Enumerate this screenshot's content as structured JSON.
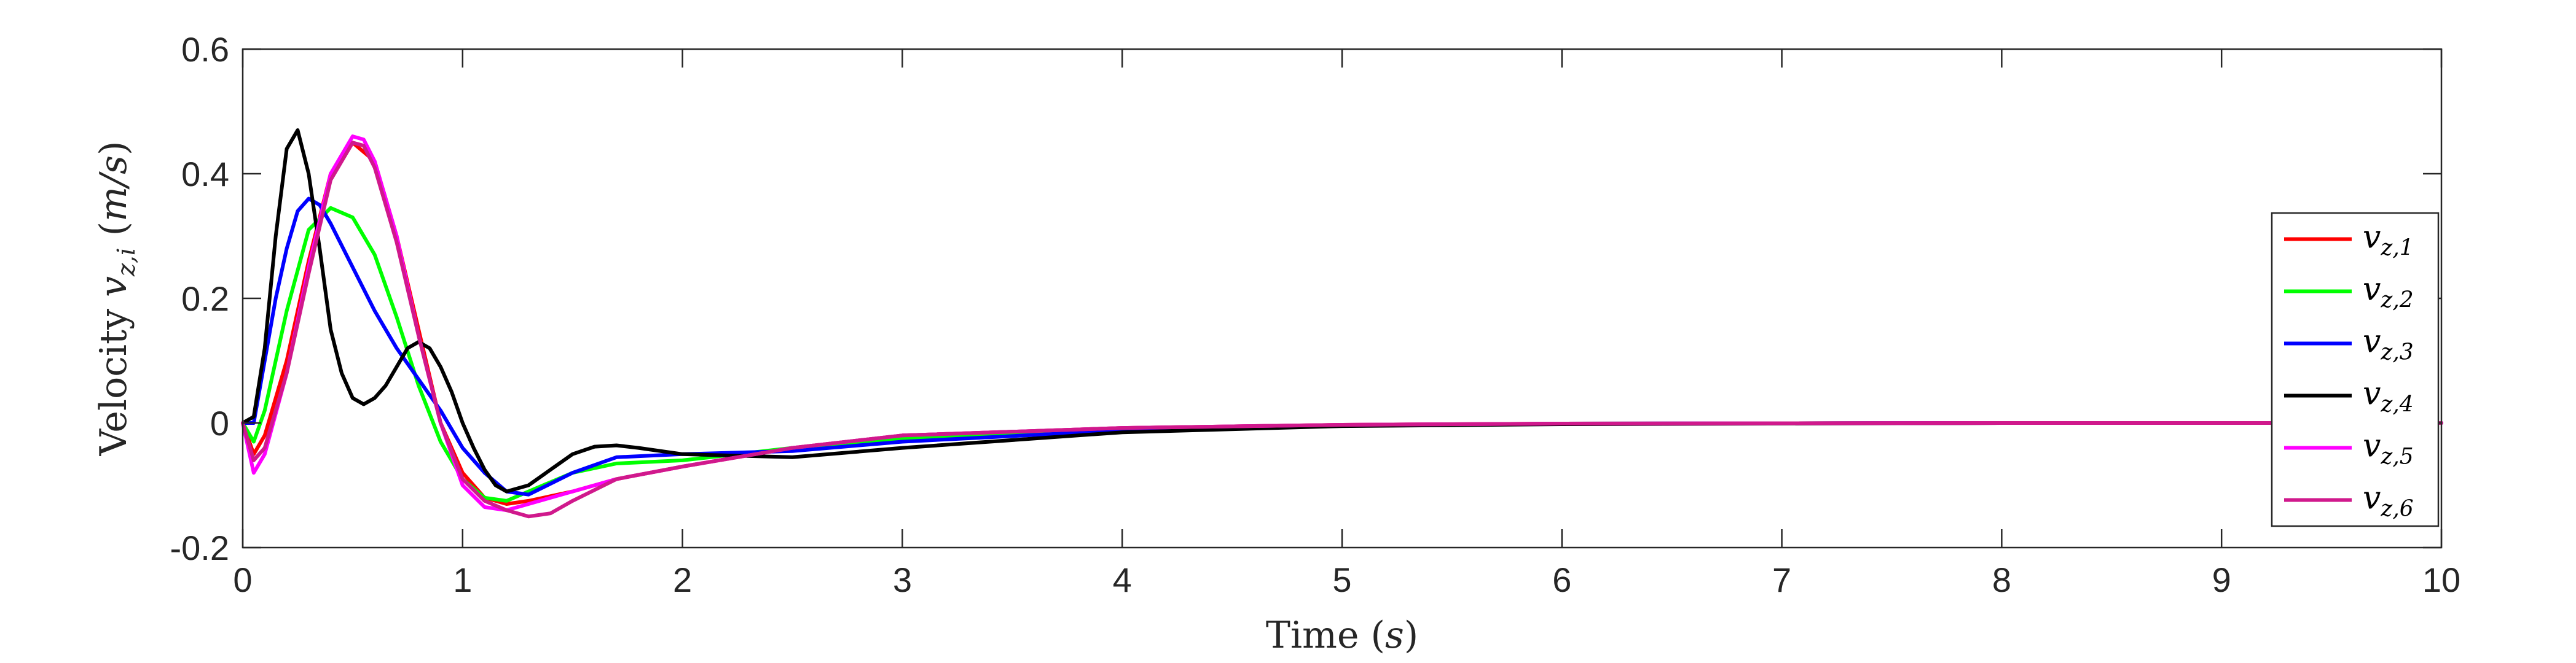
{
  "chart_data": {
    "type": "line",
    "xlabel": "Time",
    "xlabel_unit": "s",
    "ylabel": "Velocity",
    "ylabel_var": "v",
    "ylabel_sub": "z,i",
    "ylabel_unit": "m/s",
    "xlim": [
      0,
      10
    ],
    "ylim": [
      -0.2,
      0.6
    ],
    "xticks": [
      "0",
      "1",
      "2",
      "3",
      "4",
      "5",
      "6",
      "7",
      "8",
      "9",
      "10"
    ],
    "yticks": [
      "-0.2",
      "0",
      "0.2",
      "0.4",
      "0.6"
    ],
    "grid": false,
    "legend_position": "right",
    "series": [
      {
        "name": "v_{z,1}",
        "label_var": "v",
        "label_sub": "z,1",
        "color": "#ff0000",
        "x": [
          0,
          0.05,
          0.1,
          0.2,
          0.3,
          0.4,
          0.5,
          0.6,
          0.7,
          0.8,
          0.9,
          1.0,
          1.1,
          1.2,
          1.3,
          1.5,
          1.7,
          2.0,
          2.5,
          3.0,
          4.0,
          5.0,
          6.0,
          8.0,
          10.0
        ],
        "y": [
          0,
          -0.05,
          -0.02,
          0.1,
          0.26,
          0.4,
          0.45,
          0.42,
          0.3,
          0.15,
          0.0,
          -0.08,
          -0.12,
          -0.13,
          -0.125,
          -0.11,
          -0.09,
          -0.07,
          -0.04,
          -0.02,
          -0.008,
          -0.003,
          -0.001,
          0,
          0
        ]
      },
      {
        "name": "v_{z,2}",
        "label_var": "v",
        "label_sub": "z,2",
        "color": "#00ff00",
        "x": [
          0,
          0.05,
          0.1,
          0.2,
          0.3,
          0.4,
          0.5,
          0.6,
          0.7,
          0.8,
          0.9,
          1.0,
          1.1,
          1.2,
          1.3,
          1.5,
          1.7,
          2.0,
          2.5,
          3.0,
          4.0,
          5.0,
          6.0,
          8.0,
          10.0
        ],
        "y": [
          0,
          -0.03,
          0.02,
          0.18,
          0.31,
          0.345,
          0.33,
          0.27,
          0.17,
          0.06,
          -0.03,
          -0.09,
          -0.12,
          -0.125,
          -0.11,
          -0.08,
          -0.065,
          -0.06,
          -0.04,
          -0.025,
          -0.01,
          -0.004,
          -0.001,
          0,
          0
        ]
      },
      {
        "name": "v_{z,3}",
        "label_var": "v",
        "label_sub": "z,3",
        "color": "#0000ff",
        "x": [
          0,
          0.05,
          0.1,
          0.15,
          0.2,
          0.25,
          0.3,
          0.35,
          0.4,
          0.5,
          0.6,
          0.7,
          0.8,
          0.9,
          1.0,
          1.1,
          1.2,
          1.3,
          1.5,
          1.7,
          2.0,
          2.5,
          3.0,
          4.0,
          5.0,
          6.0,
          8.0,
          10.0
        ],
        "y": [
          0,
          0.0,
          0.1,
          0.2,
          0.28,
          0.34,
          0.36,
          0.35,
          0.32,
          0.25,
          0.18,
          0.12,
          0.07,
          0.02,
          -0.04,
          -0.08,
          -0.11,
          -0.115,
          -0.08,
          -0.055,
          -0.05,
          -0.045,
          -0.03,
          -0.012,
          -0.004,
          -0.001,
          0,
          0
        ]
      },
      {
        "name": "v_{z,4}",
        "label_var": "v",
        "label_sub": "z,4",
        "color": "#000000",
        "x": [
          0,
          0.05,
          0.1,
          0.15,
          0.2,
          0.25,
          0.3,
          0.35,
          0.4,
          0.45,
          0.5,
          0.55,
          0.6,
          0.65,
          0.7,
          0.75,
          0.8,
          0.85,
          0.9,
          0.95,
          1.0,
          1.05,
          1.1,
          1.15,
          1.2,
          1.3,
          1.4,
          1.5,
          1.6,
          1.7,
          1.8,
          2.0,
          2.5,
          3.0,
          4.0,
          5.0,
          6.0,
          8.0,
          10.0
        ],
        "y": [
          0,
          0.01,
          0.12,
          0.3,
          0.44,
          0.47,
          0.4,
          0.28,
          0.15,
          0.08,
          0.04,
          0.03,
          0.04,
          0.06,
          0.09,
          0.12,
          0.13,
          0.12,
          0.09,
          0.05,
          0.0,
          -0.04,
          -0.075,
          -0.1,
          -0.11,
          -0.1,
          -0.075,
          -0.05,
          -0.038,
          -0.036,
          -0.04,
          -0.05,
          -0.055,
          -0.04,
          -0.015,
          -0.005,
          -0.002,
          0,
          0
        ]
      },
      {
        "name": "v_{z,5}",
        "label_var": "v",
        "label_sub": "z,5",
        "color": "#ff00ff",
        "x": [
          0,
          0.05,
          0.1,
          0.2,
          0.3,
          0.4,
          0.5,
          0.55,
          0.6,
          0.7,
          0.8,
          0.9,
          1.0,
          1.1,
          1.2,
          1.3,
          1.5,
          1.7,
          2.0,
          2.5,
          3.0,
          4.0,
          5.0,
          6.0,
          8.0,
          10.0
        ],
        "y": [
          0,
          -0.08,
          -0.05,
          0.08,
          0.25,
          0.4,
          0.46,
          0.455,
          0.42,
          0.3,
          0.14,
          0.0,
          -0.1,
          -0.135,
          -0.14,
          -0.13,
          -0.11,
          -0.09,
          -0.07,
          -0.04,
          -0.02,
          -0.008,
          -0.003,
          -0.001,
          0,
          0
        ]
      },
      {
        "name": "v_{z,6}",
        "label_var": "v",
        "label_sub": "z,6",
        "color": "#d0198c",
        "x": [
          0,
          0.05,
          0.1,
          0.2,
          0.3,
          0.4,
          0.5,
          0.55,
          0.6,
          0.7,
          0.8,
          0.9,
          1.0,
          1.1,
          1.2,
          1.3,
          1.4,
          1.5,
          1.7,
          2.0,
          2.5,
          3.0,
          4.0,
          5.0,
          6.0,
          8.0,
          10.0
        ],
        "y": [
          0,
          -0.06,
          -0.04,
          0.08,
          0.24,
          0.39,
          0.45,
          0.445,
          0.41,
          0.29,
          0.14,
          0.0,
          -0.09,
          -0.125,
          -0.14,
          -0.15,
          -0.145,
          -0.125,
          -0.09,
          -0.07,
          -0.04,
          -0.02,
          -0.008,
          -0.003,
          -0.001,
          0,
          0
        ]
      }
    ]
  }
}
